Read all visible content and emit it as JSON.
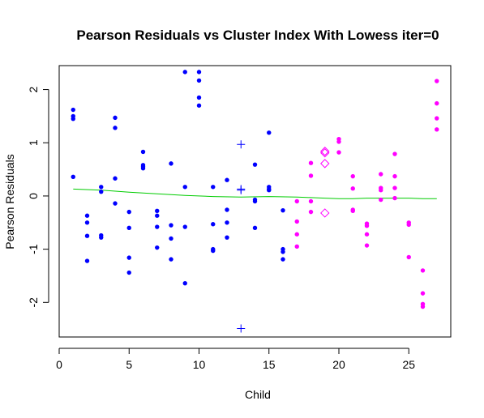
{
  "chart_data": {
    "type": "scatter",
    "title": "Pearson Residuals vs Cluster Index With Lowess iter=0",
    "xlabel": "Child",
    "ylabel": "Pearson Residuals",
    "xlim": [
      0,
      28
    ],
    "ylim": [
      -2.65,
      2.45
    ],
    "x_ticks": [
      0,
      5,
      10,
      15,
      20,
      25
    ],
    "y_ticks": [
      -2,
      -1,
      0,
      1,
      2
    ],
    "grid": false,
    "colors": {
      "blue": "#0000ff",
      "magenta": "#ff00ff",
      "lowess": "#00cc00"
    },
    "series": [
      {
        "marker": "filled-circle",
        "color": "#0000ff",
        "points": [
          [
            1,
            1.62
          ],
          [
            1,
            1.5
          ],
          [
            1,
            1.45
          ],
          [
            1,
            0.36
          ],
          [
            2,
            -0.37
          ],
          [
            2,
            -0.5
          ],
          [
            2,
            -0.75
          ],
          [
            2,
            -1.22
          ],
          [
            3,
            0.17
          ],
          [
            3,
            0.08
          ],
          [
            3,
            -0.74
          ],
          [
            3,
            -0.78
          ],
          [
            4,
            1.47
          ],
          [
            4,
            1.28
          ],
          [
            4,
            0.33
          ],
          [
            4,
            -0.14
          ],
          [
            5,
            -0.3
          ],
          [
            5,
            -0.6
          ],
          [
            5,
            -1.16
          ],
          [
            5,
            -1.44
          ],
          [
            6,
            0.83
          ],
          [
            6,
            0.58
          ],
          [
            6,
            0.55
          ],
          [
            6,
            0.52
          ],
          [
            7,
            -0.28
          ],
          [
            7,
            -0.37
          ],
          [
            7,
            -0.58
          ],
          [
            7,
            -0.97
          ],
          [
            8,
            0.61
          ],
          [
            8,
            -0.55
          ],
          [
            8,
            -0.8
          ],
          [
            8,
            -1.19
          ],
          [
            9,
            2.33
          ],
          [
            9,
            0.17
          ],
          [
            9,
            -0.58
          ],
          [
            9,
            -1.64
          ],
          [
            10,
            2.33
          ],
          [
            10,
            2.17
          ],
          [
            10,
            1.85
          ],
          [
            10,
            1.7
          ],
          [
            11,
            0.17
          ],
          [
            11,
            -0.53
          ],
          [
            11,
            -1.0
          ],
          [
            11,
            -1.03
          ],
          [
            12,
            0.3
          ],
          [
            12,
            -0.26
          ],
          [
            12,
            -0.5
          ],
          [
            12,
            -0.78
          ],
          [
            14,
            0.59
          ],
          [
            14,
            -0.07
          ],
          [
            14,
            -0.1
          ],
          [
            14,
            -0.6
          ],
          [
            15,
            1.19
          ],
          [
            15,
            0.17
          ],
          [
            15,
            0.13
          ],
          [
            15,
            0.11
          ],
          [
            16,
            -0.27
          ],
          [
            16,
            -1.0
          ],
          [
            16,
            -1.05
          ],
          [
            16,
            -1.19
          ]
        ]
      },
      {
        "marker": "plus",
        "color": "#0000ff",
        "points": [
          [
            13,
            0.97
          ],
          [
            13,
            0.13
          ],
          [
            13,
            0.11
          ],
          [
            13,
            -2.49
          ]
        ]
      },
      {
        "marker": "filled-circle",
        "color": "#ff00ff",
        "points": [
          [
            17,
            -0.1
          ],
          [
            17,
            -0.48
          ],
          [
            17,
            -0.72
          ],
          [
            17,
            -0.95
          ],
          [
            18,
            0.62
          ],
          [
            18,
            0.38
          ],
          [
            18,
            -0.1
          ],
          [
            18,
            -0.3
          ],
          [
            20,
            1.07
          ],
          [
            20,
            1.02
          ],
          [
            20,
            0.82
          ],
          [
            21,
            0.37
          ],
          [
            21,
            0.14
          ],
          [
            21,
            -0.26
          ],
          [
            21,
            -0.28
          ],
          [
            22,
            -0.52
          ],
          [
            22,
            -0.56
          ],
          [
            22,
            -0.72
          ],
          [
            22,
            -0.93
          ],
          [
            23,
            0.41
          ],
          [
            23,
            0.15
          ],
          [
            23,
            0.11
          ],
          [
            23,
            -0.07
          ],
          [
            24,
            0.79
          ],
          [
            24,
            0.37
          ],
          [
            24,
            0.15
          ],
          [
            24,
            -0.04
          ],
          [
            25,
            -0.5
          ],
          [
            25,
            -0.54
          ],
          [
            25,
            -1.15
          ],
          [
            26,
            -1.4
          ],
          [
            26,
            -1.83
          ],
          [
            26,
            -2.03
          ],
          [
            26,
            -2.08
          ],
          [
            27,
            2.16
          ],
          [
            27,
            1.74
          ],
          [
            27,
            1.46
          ],
          [
            27,
            1.25
          ]
        ]
      },
      {
        "marker": "diamond",
        "color": "#ff00ff",
        "points": [
          [
            19,
            0.84
          ],
          [
            19,
            0.81
          ],
          [
            19,
            0.61
          ],
          [
            19,
            -0.32
          ]
        ]
      },
      {
        "marker": "line",
        "color": "#00cc00",
        "points": [
          [
            1,
            0.13
          ],
          [
            3,
            0.11
          ],
          [
            5,
            0.07
          ],
          [
            7,
            0.04
          ],
          [
            9,
            0.01
          ],
          [
            11,
            -0.01
          ],
          [
            13,
            -0.02
          ],
          [
            15,
            -0.01
          ],
          [
            17,
            -0.02
          ],
          [
            18,
            -0.03
          ],
          [
            19,
            -0.04
          ],
          [
            20,
            -0.05
          ],
          [
            21,
            -0.05
          ],
          [
            22,
            -0.04
          ],
          [
            23,
            -0.04
          ],
          [
            24,
            -0.04
          ],
          [
            25,
            -0.04
          ],
          [
            26,
            -0.05
          ],
          [
            27,
            -0.05
          ]
        ]
      }
    ]
  }
}
